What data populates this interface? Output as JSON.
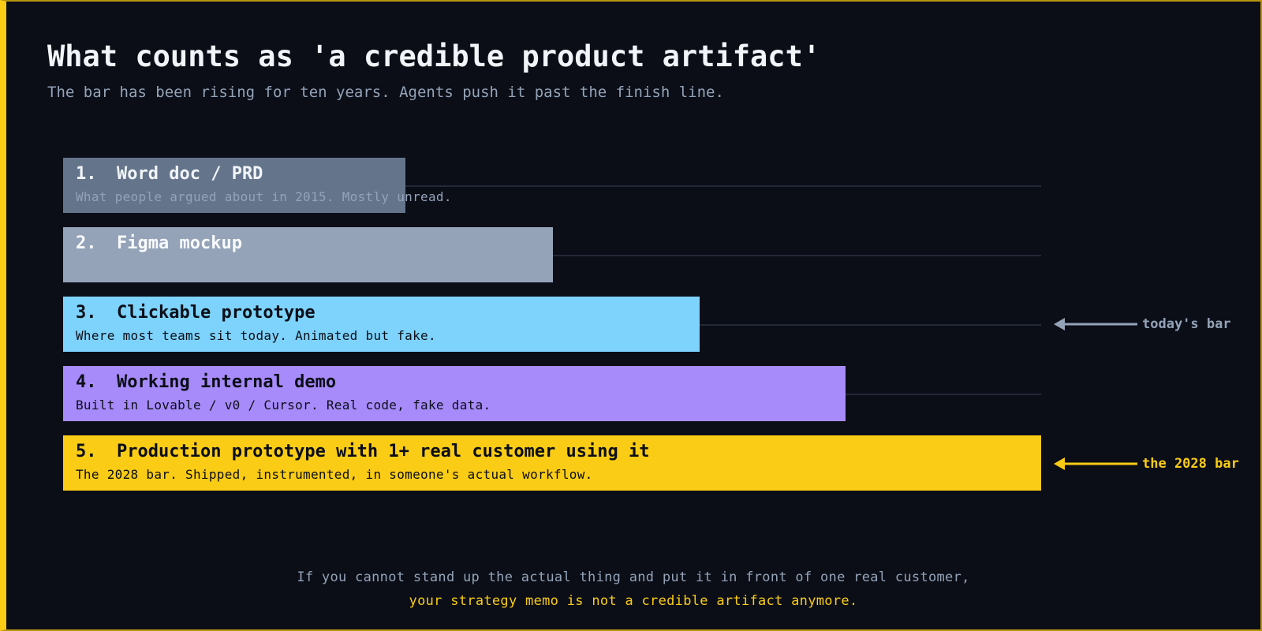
{
  "header": {
    "title": "What counts as 'a credible product artifact'",
    "subtitle": "The bar has been rising for ten years. Agents push it past the finish line."
  },
  "levels": [
    {
      "number": "1.",
      "label": "Word doc / PRD",
      "description": "What people argued about in 2015. Mostly unread."
    },
    {
      "number": "2.",
      "label": "Figma mockup"
    },
    {
      "number": "3.",
      "label": "Clickable prototype",
      "description": "Where most teams sit today. Animated but fake."
    },
    {
      "number": "4.",
      "label": "Working internal demo",
      "description": "Built in Lovable / v0 / Cursor. Real code, fake data."
    },
    {
      "number": "5.",
      "label": "Production prototype with 1+ real customer using it",
      "description": "The 2028 bar. Shipped, instrumented, in someone's actual workflow."
    }
  ],
  "markers": [
    {
      "label": "today's bar"
    },
    {
      "label": "the 2028 bar"
    }
  ],
  "footer": {
    "line1": "If you cannot stand up the actual thing and put it in front of one real customer,",
    "line2": "your strategy memo is not a credible artifact anymore."
  }
}
